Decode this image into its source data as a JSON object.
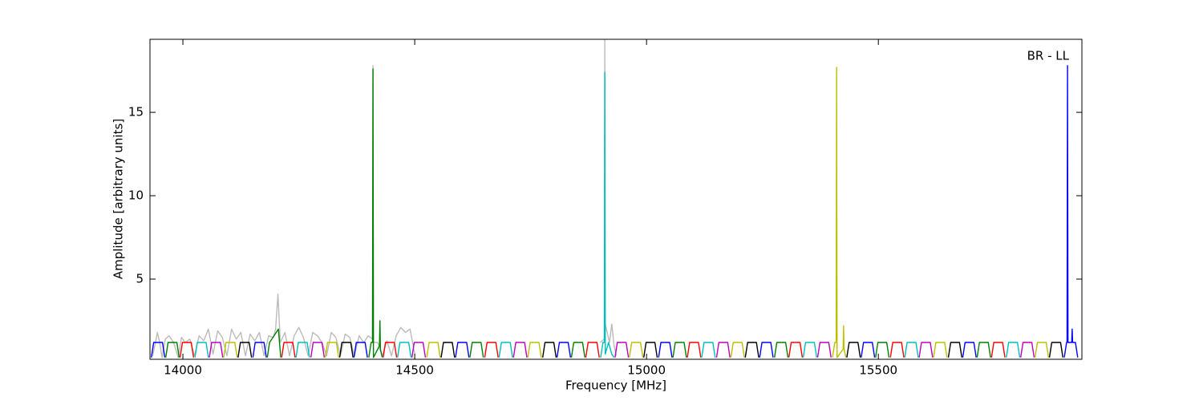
{
  "chart_data": {
    "type": "line",
    "annotation": "BR - LL",
    "x_label": "Frequency [MHz]",
    "y_label": "Amplitude [arbitrary units]",
    "xlim": [
      13929,
      15939
    ],
    "ylim": [
      0.19,
      19.38
    ],
    "xticks": [
      14000,
      14500,
      15000,
      15500
    ],
    "yticks": [
      5,
      10,
      15
    ],
    "grid": false,
    "series": [
      {
        "color": "#bbbbbb",
        "x": [
          13935,
          13945,
          13950,
          13955,
          13962,
          13970,
          13980,
          13990,
          13997,
          14005,
          14015,
          14025,
          14035,
          14045,
          14055,
          14065,
          14075,
          14085,
          14095,
          14105,
          14115,
          14125,
          14135,
          14145,
          14155,
          14165,
          14175,
          14185,
          14195,
          14200,
          14205,
          14210,
          14220,
          14230,
          14240,
          14250,
          14260,
          14270,
          14280,
          14290,
          14300,
          14310,
          14320,
          14330,
          14340,
          14350,
          14360,
          14370,
          14380,
          14390,
          14400,
          14409,
          14410,
          14411,
          14420,
          14430,
          14440,
          14450,
          14460,
          14470,
          14480,
          14490,
          14500,
          null,
          14900,
          14909,
          14910,
          14911,
          14920,
          14925,
          14930,
          14935
        ],
        "values": [
          0.4,
          1.8,
          1.2,
          0.3,
          1.4,
          1.6,
          1.2,
          0.3,
          1.5,
          1.2,
          1.4,
          0.4,
          1.6,
          1.3,
          2.0,
          0.5,
          1.9,
          1.5,
          0.4,
          2.0,
          1.4,
          1.8,
          0.4,
          1.7,
          1.3,
          1.8,
          0.4,
          1.6,
          1.5,
          2.0,
          4.1,
          1.2,
          1.8,
          0.4,
          1.6,
          2.1,
          1.5,
          0.4,
          1.8,
          1.6,
          1.2,
          0.4,
          1.8,
          1.5,
          0.4,
          1.7,
          1.5,
          0.4,
          1.6,
          1.2,
          1.6,
          1.4,
          17.8,
          1.2,
          1.2,
          0.4,
          1.3,
          0.4,
          1.6,
          2.1,
          1.8,
          2.0,
          0.5,
          null,
          1.2,
          1.4,
          19.4,
          2.3,
          1.2,
          2.3,
          1.0,
          0.4
        ]
      },
      {
        "color": "#0000ff",
        "x": [
          13932,
          13937,
          13956,
          13961,
          null,
          14151,
          14156,
          14175,
          14180,
          null,
          14369,
          14374,
          14393,
          14398,
          null,
          14588,
          14593,
          14612,
          14617,
          null,
          14807,
          14812,
          14831,
          14836,
          null,
          15026,
          15031,
          15050,
          15055,
          null,
          15244,
          15249,
          15268,
          15273,
          null,
          15463,
          15468,
          15487,
          15492,
          null,
          15682,
          15687,
          15706,
          15711,
          null,
          15901,
          15906,
          15907,
          15908,
          15909,
          15917,
          15918,
          15919,
          15925,
          15930
        ],
        "values": [
          0.3,
          1.2,
          1.2,
          0.3,
          null,
          0.3,
          1.2,
          1.2,
          0.3,
          null,
          0.3,
          1.2,
          1.2,
          0.3,
          null,
          0.3,
          1.2,
          1.2,
          0.3,
          null,
          0.3,
          1.2,
          1.2,
          0.3,
          null,
          0.3,
          1.2,
          1.2,
          0.3,
          null,
          0.3,
          1.2,
          1.2,
          0.3,
          null,
          0.3,
          1.2,
          1.2,
          0.3,
          null,
          0.3,
          1.2,
          1.2,
          0.3,
          null,
          0.3,
          1.2,
          1.2,
          17.8,
          1.2,
          1.2,
          2.0,
          1.2,
          1.2,
          0.3
        ]
      },
      {
        "color": "#008000",
        "x": [
          13963,
          13968,
          13987,
          13992,
          null,
          14182,
          14187,
          14206,
          14211,
          null,
          14401,
          14406,
          14409,
          14410,
          14411,
          14424,
          14425,
          14426,
          14430,
          null,
          14619,
          14624,
          14643,
          14648,
          null,
          14838,
          14843,
          14862,
          14867,
          null,
          15057,
          15062,
          15081,
          15086,
          null,
          15276,
          15281,
          15300,
          15305,
          null,
          15494,
          15499,
          15518,
          15523,
          null,
          15713,
          15718,
          15737,
          15742
        ],
        "values": [
          0.3,
          1.2,
          1.2,
          0.3,
          null,
          0.3,
          1.2,
          2.0,
          0.3,
          null,
          0.3,
          1.2,
          1.2,
          17.6,
          0.3,
          1.0,
          2.5,
          0.8,
          0.3,
          null,
          0.3,
          1.2,
          1.2,
          0.3,
          null,
          0.3,
          1.2,
          1.2,
          0.3,
          null,
          0.3,
          1.2,
          1.2,
          0.3,
          null,
          0.3,
          1.2,
          1.2,
          0.3,
          null,
          0.3,
          1.2,
          1.2,
          0.3,
          null,
          0.3,
          1.2,
          1.2,
          0.3
        ]
      },
      {
        "color": "#ff0000",
        "x": [
          13994,
          13999,
          14018,
          14023,
          null,
          14213,
          14218,
          14237,
          14242,
          null,
          14432,
          14437,
          14456,
          14461,
          null,
          14651,
          14656,
          14675,
          14680,
          null,
          14869,
          14874,
          14893,
          14898,
          null,
          15088,
          15093,
          15112,
          15117,
          null,
          15307,
          15312,
          15331,
          15336,
          null,
          15526,
          15531,
          15550,
          15555,
          null,
          15744,
          15749,
          15768,
          15773
        ],
        "values": [
          0.3,
          1.2,
          1.2,
          0.3,
          null,
          0.3,
          1.2,
          1.2,
          0.3,
          null,
          0.3,
          1.2,
          1.2,
          0.3,
          null,
          0.3,
          1.2,
          1.2,
          0.3,
          null,
          0.3,
          1.2,
          1.2,
          0.3,
          null,
          0.3,
          1.2,
          1.2,
          0.3,
          null,
          0.3,
          1.2,
          1.2,
          0.3,
          null,
          0.3,
          1.2,
          1.2,
          0.3,
          null,
          0.3,
          1.2,
          1.2,
          0.3
        ]
      },
      {
        "color": "#00bfbf",
        "x": [
          14026,
          14031,
          14050,
          14055,
          null,
          14244,
          14249,
          14268,
          14273,
          null,
          14463,
          14468,
          14487,
          14492,
          null,
          14682,
          14687,
          14706,
          14711,
          null,
          14901,
          14906,
          14909,
          14910,
          14911,
          14918,
          14925,
          14930,
          null,
          15119,
          15124,
          15143,
          15148,
          null,
          15338,
          15343,
          15362,
          15367,
          null,
          15557,
          15562,
          15581,
          15586,
          null,
          15776,
          15781,
          15800,
          15805
        ],
        "values": [
          0.3,
          1.2,
          1.2,
          0.3,
          null,
          0.3,
          1.2,
          1.2,
          0.3,
          null,
          0.3,
          1.2,
          1.2,
          0.3,
          null,
          0.3,
          1.2,
          1.2,
          0.3,
          null,
          0.3,
          1.2,
          1.2,
          17.4,
          0.5,
          1.2,
          0.5,
          0.3,
          null,
          0.3,
          1.2,
          1.2,
          0.3,
          null,
          0.3,
          1.2,
          1.2,
          0.3,
          null,
          0.3,
          1.2,
          1.2,
          0.3,
          null,
          0.3,
          1.2,
          1.2,
          0.3
        ]
      },
      {
        "color": "#bf00bf",
        "x": [
          14057,
          14062,
          14081,
          14086,
          null,
          14276,
          14281,
          14300,
          14305,
          null,
          14494,
          14499,
          14518,
          14523,
          null,
          14713,
          14718,
          14737,
          14742,
          null,
          14932,
          14937,
          14956,
          14961,
          null,
          15151,
          15156,
          15175,
          15180,
          null,
          15369,
          15374,
          15393,
          15398,
          null,
          15588,
          15593,
          15612,
          15617,
          null,
          15807,
          15812,
          15831,
          15836
        ],
        "values": [
          0.3,
          1.2,
          1.2,
          0.3,
          null,
          0.3,
          1.2,
          1.2,
          0.3,
          null,
          0.3,
          1.2,
          1.2,
          0.3,
          null,
          0.3,
          1.2,
          1.2,
          0.3,
          null,
          0.3,
          1.2,
          1.2,
          0.3,
          null,
          0.3,
          1.2,
          1.2,
          0.3,
          null,
          0.3,
          1.2,
          1.2,
          0.3,
          null,
          0.3,
          1.2,
          1.2,
          0.3,
          null,
          0.3,
          1.2,
          1.2,
          0.3
        ]
      },
      {
        "color": "#bfbf00",
        "x": [
          14088,
          14093,
          14112,
          14117,
          null,
          14307,
          14312,
          14331,
          14336,
          null,
          14526,
          14531,
          14550,
          14555,
          null,
          14744,
          14749,
          14768,
          14773,
          null,
          14963,
          14968,
          14987,
          14992,
          null,
          15182,
          15187,
          15206,
          15211,
          null,
          15401,
          15406,
          15409,
          15410,
          15411,
          15424,
          15425,
          15426,
          15430,
          null,
          15619,
          15624,
          15643,
          15648,
          null,
          15838,
          15843,
          15862,
          15867
        ],
        "values": [
          0.3,
          1.2,
          1.2,
          0.3,
          null,
          0.3,
          1.2,
          1.2,
          0.3,
          null,
          0.3,
          1.2,
          1.2,
          0.3,
          null,
          0.3,
          1.2,
          1.2,
          0.3,
          null,
          0.3,
          1.2,
          1.2,
          0.3,
          null,
          0.3,
          1.2,
          1.2,
          0.3,
          null,
          0.3,
          1.2,
          1.2,
          17.7,
          0.3,
          0.8,
          2.2,
          0.8,
          0.3,
          null,
          0.3,
          1.2,
          1.2,
          0.3,
          null,
          0.3,
          1.2,
          1.2,
          0.3
        ]
      },
      {
        "color": "#000000",
        "x": [
          14119,
          14124,
          14143,
          14148,
          null,
          14338,
          14343,
          14362,
          14367,
          null,
          14557,
          14562,
          14581,
          14586,
          null,
          14776,
          14781,
          14800,
          14805,
          null,
          14994,
          14999,
          15018,
          15023,
          null,
          15213,
          15218,
          15237,
          15242,
          null,
          15432,
          15437,
          15456,
          15461,
          null,
          15651,
          15656,
          15675,
          15680,
          null,
          15869,
          15874,
          15893,
          15898
        ],
        "values": [
          0.3,
          1.2,
          1.2,
          0.3,
          null,
          0.3,
          1.2,
          1.2,
          0.3,
          null,
          0.3,
          1.2,
          1.2,
          0.3,
          null,
          0.3,
          1.2,
          1.2,
          0.3,
          null,
          0.3,
          1.2,
          1.2,
          0.3,
          null,
          0.3,
          1.2,
          1.2,
          0.3,
          null,
          0.3,
          1.2,
          1.2,
          0.3,
          null,
          0.3,
          1.2,
          1.2,
          0.3,
          null,
          0.3,
          1.2,
          1.2,
          0.3
        ]
      }
    ]
  }
}
